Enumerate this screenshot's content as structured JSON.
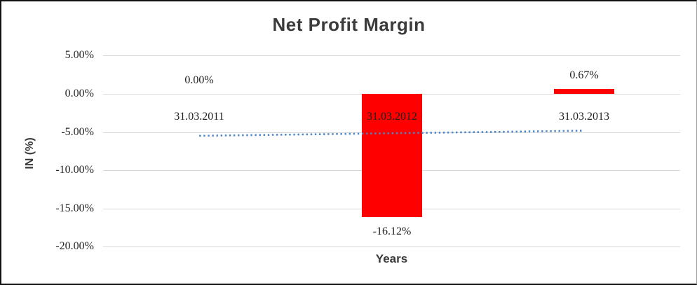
{
  "chart_data": {
    "type": "bar",
    "title": "Net Profit Margin",
    "xlabel": "Years",
    "ylabel": "IN (%)",
    "categories": [
      "31.03.2011",
      "31.03.2012",
      "31.03.2013"
    ],
    "series": [
      {
        "name": "Net Profit Margin",
        "values": [
          0,
          -16.12,
          0.67
        ],
        "labels": [
          "0.00%",
          "-16.12%",
          "0.67%"
        ],
        "color": "#ff0000"
      }
    ],
    "trendline": {
      "type": "linear",
      "style": "dotted",
      "color": "#4a86c8",
      "start_value": -5.49,
      "end_value": -4.82
    },
    "y_ticks": [
      5,
      0,
      -5,
      -10,
      -15,
      -20
    ],
    "y_tick_labels": [
      "5.00%",
      "0.00%",
      "-5.00%",
      "-10.00%",
      "-15.00%",
      "-20.00%"
    ],
    "ylim": [
      -20,
      5
    ],
    "grid": true,
    "gridline_color": "#d9d9d9",
    "legend": "none",
    "background_color": "#ffffff"
  }
}
